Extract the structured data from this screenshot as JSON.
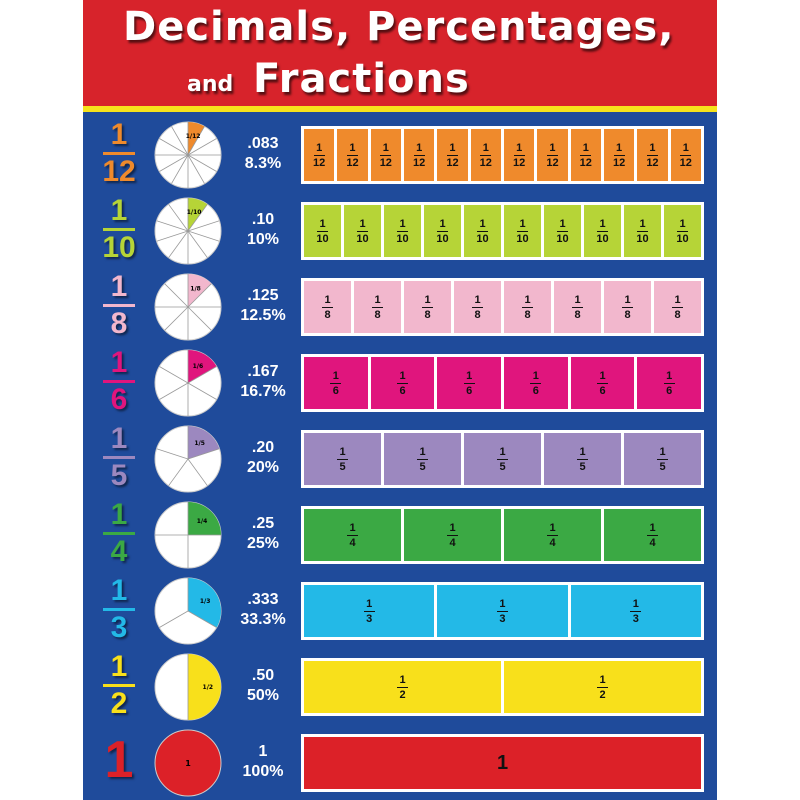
{
  "title": {
    "line1": "Decimals, Percentages,",
    "line2_small": "and",
    "line2_big": "Fractions"
  },
  "colors": {
    "header": "#d7232b",
    "stripe": "#f6e21c",
    "background": "#1f4b9b"
  },
  "rows": [
    {
      "numerator": "1",
      "denominator": "12",
      "decimal": ".083",
      "percent": "8.3%",
      "parts": 12,
      "color": "#ef8a2c",
      "text_color": "#ef8a2c"
    },
    {
      "numerator": "1",
      "denominator": "10",
      "decimal": ".10",
      "percent": "10%",
      "parts": 10,
      "color": "#b6d437",
      "text_color": "#b6d437"
    },
    {
      "numerator": "1",
      "denominator": "8",
      "decimal": ".125",
      "percent": "12.5%",
      "parts": 8,
      "color": "#f2b7cd",
      "text_color": "#f2b7cd"
    },
    {
      "numerator": "1",
      "denominator": "6",
      "decimal": ".167",
      "percent": "16.7%",
      "parts": 6,
      "color": "#e0157d",
      "text_color": "#e0157d"
    },
    {
      "numerator": "1",
      "denominator": "5",
      "decimal": ".20",
      "percent": "20%",
      "parts": 5,
      "color": "#9c88bf",
      "text_color": "#9c88bf"
    },
    {
      "numerator": "1",
      "denominator": "4",
      "decimal": ".25",
      "percent": "25%",
      "parts": 4,
      "color": "#3ba944",
      "text_color": "#3ba944"
    },
    {
      "numerator": "1",
      "denominator": "3",
      "decimal": ".333",
      "percent": "33.3%",
      "parts": 3,
      "color": "#23b9e7",
      "text_color": "#23b9e7"
    },
    {
      "numerator": "1",
      "denominator": "2",
      "decimal": ".50",
      "percent": "50%",
      "parts": 2,
      "color": "#f8e01b",
      "text_color": "#f8e01b"
    },
    {
      "numerator": "1",
      "denominator": "",
      "decimal": "1",
      "percent": "100%",
      "parts": 1,
      "color": "#dc2128",
      "text_color": "#dc2128"
    }
  ]
}
